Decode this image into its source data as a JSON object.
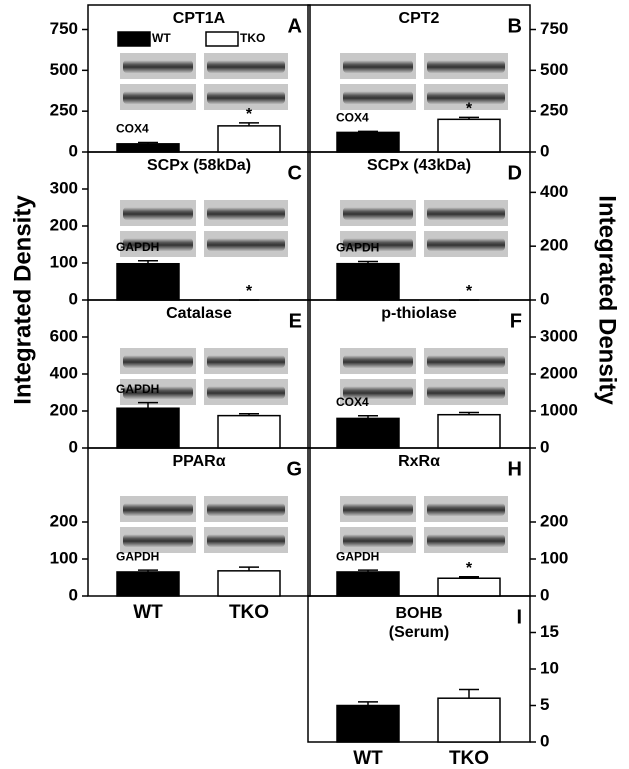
{
  "y_axis_label": "Integrated Density",
  "chart_data": [
    {
      "type": "bar",
      "title": "CPT1A",
      "panel": "A",
      "axis_side": "left",
      "ylim": [
        0,
        900
      ],
      "yticks": [
        0,
        250,
        500,
        750
      ],
      "values": [
        50,
        160
      ],
      "errors": [
        8,
        18
      ],
      "significance": [
        null,
        "*"
      ],
      "blot_label": "COX4",
      "colors": [
        "#000000",
        "#ffffff"
      ],
      "legend": [
        {
          "name": "WT",
          "color": "#000000"
        },
        {
          "name": "TKO",
          "color": "#ffffff"
        }
      ]
    },
    {
      "type": "bar",
      "title": "CPT2",
      "panel": "B",
      "axis_side": "right",
      "ylim": [
        0,
        900
      ],
      "yticks": [
        0,
        250,
        500,
        750
      ],
      "values": [
        120,
        200
      ],
      "errors": [
        6,
        12
      ],
      "significance": [
        null,
        "*"
      ],
      "blot_label": "COX4",
      "colors": [
        "#000000",
        "#ffffff"
      ]
    },
    {
      "type": "bar",
      "title": "SCPx (58kDa)",
      "panel": "C",
      "axis_side": "left",
      "ylim": [
        0,
        400
      ],
      "yticks": [
        0,
        100,
        200,
        300
      ],
      "values": [
        98,
        0
      ],
      "errors": [
        8,
        0
      ],
      "significance": [
        null,
        "*"
      ],
      "blot_label": "GAPDH",
      "colors": [
        "#000000",
        "#ffffff"
      ]
    },
    {
      "type": "bar",
      "title": "SCPx (43kDa)",
      "panel": "D",
      "axis_side": "right",
      "ylim": [
        0,
        550
      ],
      "yticks": [
        0,
        200,
        400
      ],
      "values": [
        135,
        0
      ],
      "errors": [
        8,
        0
      ],
      "significance": [
        null,
        "*"
      ],
      "blot_label": "GAPDH",
      "colors": [
        "#000000",
        "#ffffff"
      ]
    },
    {
      "type": "bar",
      "title": "Catalase",
      "panel": "E",
      "axis_side": "left",
      "ylim": [
        0,
        800
      ],
      "yticks": [
        0,
        200,
        400,
        600
      ],
      "values": [
        215,
        175
      ],
      "errors": [
        30,
        10
      ],
      "significance": [
        null,
        null
      ],
      "blot_label": "GAPDH",
      "colors": [
        "#000000",
        "#ffffff"
      ]
    },
    {
      "type": "bar",
      "title": "p-thiolase",
      "panel": "F",
      "axis_side": "right",
      "ylim": [
        0,
        4000
      ],
      "yticks": [
        0,
        1000,
        2000,
        3000
      ],
      "values": [
        800,
        900
      ],
      "errors": [
        70,
        60
      ],
      "significance": [
        null,
        null
      ],
      "blot_label": "COX4",
      "colors": [
        "#000000",
        "#ffffff"
      ]
    },
    {
      "type": "bar",
      "title": "PPARα",
      "panel": "G",
      "axis_side": "left",
      "ylim": [
        0,
        400
      ],
      "yticks": [
        0,
        100,
        200
      ],
      "values": [
        65,
        68
      ],
      "errors": [
        5,
        10
      ],
      "significance": [
        null,
        null
      ],
      "blot_label": "GAPDH",
      "colors": [
        "#000000",
        "#ffffff"
      ],
      "categories": [
        "WT",
        "TKO"
      ]
    },
    {
      "type": "bar",
      "title": "RxRα",
      "panel": "H",
      "axis_side": "right",
      "ylim": [
        0,
        400
      ],
      "yticks": [
        0,
        100,
        200
      ],
      "values": [
        65,
        48
      ],
      "errors": [
        5,
        4
      ],
      "significance": [
        null,
        "*"
      ],
      "blot_label": "GAPDH",
      "colors": [
        "#000000",
        "#ffffff"
      ]
    },
    {
      "type": "bar",
      "title": [
        "BOHB",
        "(Serum)"
      ],
      "panel": "I",
      "axis_side": "right",
      "ylim": [
        0,
        20
      ],
      "yticks": [
        0,
        5,
        10,
        15
      ],
      "values": [
        5,
        6
      ],
      "errors": [
        0.5,
        1.2
      ],
      "significance": [
        null,
        null
      ],
      "colors": [
        "#000000",
        "#ffffff"
      ],
      "categories": [
        "WT",
        "TKO"
      ]
    }
  ]
}
